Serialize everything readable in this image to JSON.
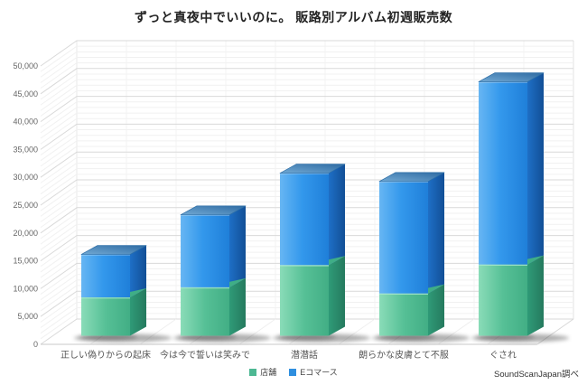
{
  "chart_data": {
    "type": "bar",
    "variant": "3d-stacked-column",
    "title": "ずっと真夜中でいいのに。 販路別アルバム初週販売数",
    "categories": [
      "正しい偽りからの起床",
      "今は今で誓いは笑みで",
      "潜潜話",
      "朗らかな皮膚とて不服",
      "ぐされ"
    ],
    "series": [
      {
        "name": "店舗",
        "color": "#4db893",
        "values": [
          6900,
          8700,
          12700,
          7600,
          12800
        ]
      },
      {
        "name": "Eコマース",
        "color": "#2f8fdf",
        "values": [
          7700,
          13000,
          16500,
          20100,
          32800
        ]
      }
    ],
    "totals": [
      14600,
      21700,
      29200,
      27700,
      45600
    ],
    "xlabel": "",
    "ylabel": "",
    "ylim": [
      0,
      50000
    ],
    "y_tick_step": 5000,
    "y_minor_step": 1000,
    "y_tick_labels": [
      "0",
      "5,000",
      "10,000",
      "15,000",
      "20,000",
      "25,000",
      "30,000",
      "35,000",
      "40,000",
      "45,000",
      "50,000"
    ],
    "grid": true,
    "legend_position": "bottom",
    "source": "SoundScanJapan調べ"
  }
}
